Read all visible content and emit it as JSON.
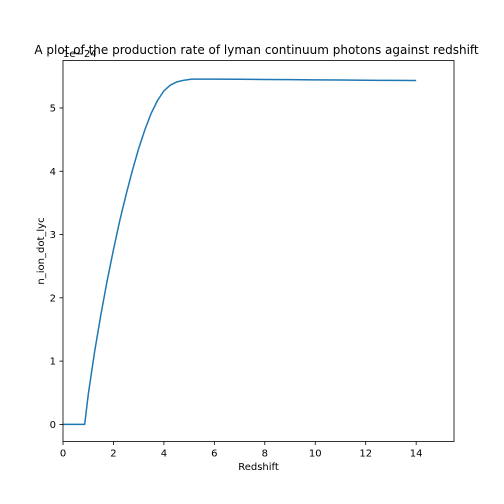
{
  "chart_data": {
    "type": "line",
    "title": "A plot of the production rate of lyman continuum photons against redshift",
    "xlabel": "Redshift",
    "ylabel": "n_ion_dot_lyc",
    "y_offset_text": "1e−24",
    "xlim": [
      0,
      15.5
    ],
    "ylim": [
      -0.27,
      5.75
    ],
    "x_ticks": [
      0,
      2,
      4,
      6,
      8,
      10,
      12,
      14
    ],
    "y_ticks": [
      0,
      1,
      2,
      3,
      4,
      5
    ],
    "grid": false,
    "series": [
      {
        "color": "#1f77b4",
        "x": [
          0.0,
          0.86,
          1.0,
          1.25,
          1.5,
          1.75,
          2.0,
          2.25,
          2.5,
          2.75,
          3.0,
          3.25,
          3.5,
          3.75,
          4.0,
          4.25,
          4.5,
          4.75,
          5.0,
          5.1,
          6.0,
          7.0,
          8.0,
          9.0,
          10.0,
          11.0,
          12.0,
          13.0,
          14.0
        ],
        "y": [
          0.0,
          0.0,
          0.47,
          1.14,
          1.73,
          2.27,
          2.76,
          3.22,
          3.63,
          4.01,
          4.36,
          4.66,
          4.92,
          5.12,
          5.27,
          5.36,
          5.41,
          5.435,
          5.45,
          5.455,
          5.455,
          5.453,
          5.45,
          5.447,
          5.444,
          5.441,
          5.438,
          5.436,
          5.434
        ]
      }
    ]
  }
}
